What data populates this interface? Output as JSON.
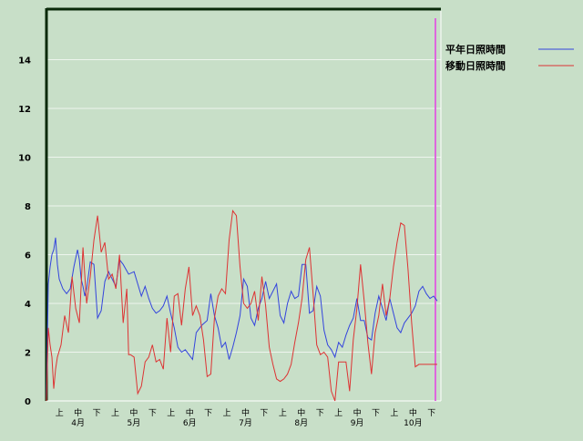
{
  "chart_data": {
    "type": "line",
    "title": "",
    "xlabel": "",
    "ylabel": "",
    "ylim": [
      0,
      16
    ],
    "yticks": [
      0,
      2,
      4,
      6,
      8,
      10,
      12,
      14
    ],
    "grid": true,
    "legend_position": "top-right",
    "x_ticks": [
      {
        "month": "4月",
        "dekads": [
          "上",
          "中",
          "下"
        ]
      },
      {
        "month": "5月",
        "dekads": [
          "上",
          "中",
          "下"
        ]
      },
      {
        "month": "6月",
        "dekads": [
          "上",
          "中",
          "下"
        ]
      },
      {
        "month": "7月",
        "dekads": [
          "上",
          "中",
          "下"
        ]
      },
      {
        "month": "8月",
        "dekads": [
          "上",
          "中",
          "下"
        ]
      },
      {
        "month": "9月",
        "dekads": [
          "上",
          "中",
          "下"
        ]
      },
      {
        "month": "10月",
        "dekads": [
          "上",
          "中",
          "下"
        ]
      }
    ],
    "marker_line": {
      "day": 213,
      "color": "#dd66dd"
    },
    "series": [
      {
        "name": "平年日照時間",
        "color": "#3344dd",
        "x": [
          0,
          1,
          2,
          3,
          4,
          5,
          6,
          7,
          9,
          11,
          13,
          15,
          17,
          18,
          19,
          20,
          21,
          22,
          24,
          26,
          28,
          30,
          32,
          34,
          36,
          38,
          40,
          42,
          45,
          48,
          50,
          52,
          54,
          56,
          58,
          60,
          62,
          64,
          66,
          68,
          70,
          72,
          74,
          76,
          78,
          80,
          82,
          85,
          88,
          90,
          92,
          94,
          96,
          98,
          100,
          102,
          104,
          106,
          108,
          110,
          112,
          114,
          116,
          118,
          120,
          122,
          124,
          126,
          128,
          130,
          132,
          134,
          136,
          138,
          140,
          142,
          144,
          146,
          148,
          150,
          152,
          154,
          156,
          158,
          160,
          162,
          164,
          166,
          168,
          170,
          172,
          174,
          176,
          178,
          180,
          182,
          184,
          186,
          188,
          190,
          192,
          194,
          196,
          198,
          200,
          202,
          204,
          206,
          208,
          210,
          212,
          214
        ],
        "values": [
          0,
          4.8,
          5.5,
          6.0,
          6.2,
          6.7,
          5.6,
          5.0,
          4.6,
          4.4,
          4.6,
          5.5,
          6.2,
          5.8,
          5.0,
          4.7,
          4.3,
          4.6,
          5.7,
          5.6,
          3.4,
          3.7,
          4.9,
          5.3,
          5.0,
          4.7,
          5.8,
          5.6,
          5.2,
          5.3,
          4.8,
          4.3,
          4.7,
          4.2,
          3.8,
          3.6,
          3.7,
          3.9,
          4.3,
          3.6,
          3.0,
          2.2,
          2.0,
          2.1,
          1.9,
          1.7,
          2.8,
          3.1,
          3.3,
          4.4,
          3.5,
          3.0,
          2.2,
          2.4,
          1.7,
          2.2,
          2.8,
          3.5,
          5.0,
          4.7,
          3.4,
          3.1,
          3.8,
          4.2,
          4.9,
          4.2,
          4.5,
          4.8,
          3.5,
          3.2,
          4.0,
          4.5,
          4.2,
          4.3,
          5.6,
          5.6,
          3.6,
          3.7,
          4.7,
          4.3,
          2.9,
          2.3,
          2.1,
          1.8,
          2.4,
          2.2,
          2.7,
          3.1,
          3.4,
          4.2,
          3.3,
          3.3,
          2.6,
          2.5,
          3.6,
          4.3,
          3.8,
          3.3,
          4.2,
          3.6,
          3.0,
          2.8,
          3.2,
          3.4,
          3.6,
          3.9,
          4.5,
          4.7,
          4.4,
          4.2,
          4.3,
          4.1
        ]
      },
      {
        "name": "移動日照時間",
        "color": "#dd3333",
        "x": [
          0,
          1,
          2,
          3,
          4,
          5,
          6,
          8,
          10,
          12,
          14,
          16,
          18,
          20,
          22,
          24,
          26,
          28,
          30,
          32,
          34,
          36,
          38,
          40,
          42,
          44,
          45,
          46,
          48,
          50,
          52,
          54,
          56,
          58,
          60,
          62,
          64,
          66,
          68,
          70,
          72,
          74,
          76,
          78,
          80,
          82,
          84,
          86,
          88,
          90,
          92,
          94,
          96,
          98,
          100,
          102,
          104,
          106,
          108,
          110,
          112,
          114,
          116,
          118,
          120,
          122,
          124,
          126,
          128,
          130,
          132,
          134,
          136,
          138,
          140,
          142,
          144,
          146,
          148,
          150,
          152,
          154,
          156,
          158,
          160,
          162,
          164,
          166,
          168,
          170,
          172,
          174,
          176,
          178,
          180,
          182,
          184,
          186,
          188,
          190,
          192,
          194,
          196,
          198,
          200,
          202,
          204,
          206,
          208,
          210,
          212,
          214
        ],
        "values": [
          0,
          3.0,
          2.3,
          1.8,
          0.5,
          1.3,
          1.8,
          2.3,
          3.5,
          2.8,
          5.1,
          3.8,
          3.2,
          6.3,
          4.0,
          5.1,
          6.6,
          7.6,
          6.1,
          6.5,
          5.0,
          5.2,
          4.6,
          6.0,
          3.2,
          4.6,
          1.9,
          1.9,
          1.8,
          0.3,
          0.6,
          1.6,
          1.8,
          2.3,
          1.6,
          1.7,
          1.3,
          3.4,
          2.0,
          4.3,
          4.4,
          3.1,
          4.6,
          5.5,
          3.5,
          3.9,
          3.5,
          2.5,
          1.0,
          1.1,
          3.4,
          4.3,
          4.6,
          4.4,
          6.6,
          7.8,
          7.6,
          5.5,
          4.0,
          3.8,
          4.0,
          4.5,
          3.3,
          5.1,
          3.9,
          2.2,
          1.5,
          0.9,
          0.8,
          0.9,
          1.1,
          1.5,
          2.4,
          3.2,
          4.2,
          5.8,
          6.3,
          4.4,
          2.3,
          1.9,
          2.0,
          1.8,
          0.4,
          0.0,
          1.6,
          1.6,
          1.6,
          0.4,
          2.5,
          3.8,
          5.6,
          4.1,
          2.4,
          1.1,
          2.8,
          3.5,
          4.8,
          3.5,
          4.2,
          5.5,
          6.5,
          7.3,
          7.2,
          5.4,
          3.2,
          1.4,
          1.5,
          1.5,
          1.5,
          1.5,
          1.5,
          1.5
        ]
      }
    ]
  }
}
